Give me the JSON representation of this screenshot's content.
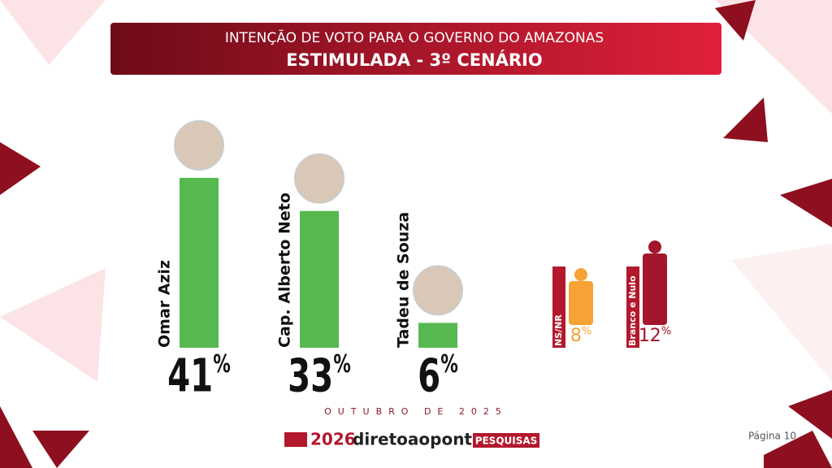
{
  "chart_data": {
    "type": "bar",
    "title": "INTENÇÃO DE VOTO PARA O GOVERNO DO AMAZONAS",
    "subtitle": "ESTIMULADA - 3º CENÁRIO",
    "categories": [
      "Omar Aziz",
      "Cap. Alberto Neto",
      "Tadeu de Souza"
    ],
    "values": [
      41,
      33,
      6
    ],
    "value_labels": [
      "41%",
      "33%",
      "6%"
    ],
    "color": "#55b94f",
    "ylim": [
      0,
      50
    ],
    "others": [
      {
        "label": "NS/NR",
        "value": 8,
        "value_label": "8%",
        "color": "#f7a234"
      },
      {
        "label": "Branco e Nulo",
        "value": 12,
        "value_label": "12%",
        "color": "#a3162b"
      }
    ],
    "date": "OUTUBRO DE 2025"
  },
  "footer": {
    "year": "2026",
    "brand": "diretoaoponto",
    "tag": "PESQUISAS",
    "page": "Página 10"
  }
}
